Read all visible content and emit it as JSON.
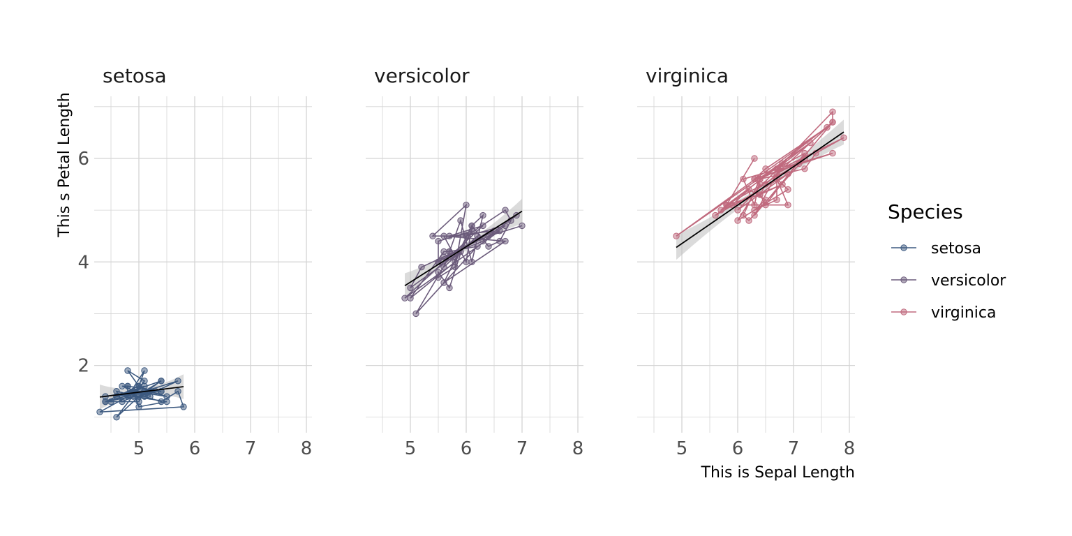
{
  "chart_data": {
    "type": "scatter",
    "facets": [
      "setosa",
      "versicolor",
      "virginica"
    ],
    "xlabel": "This is Sepal Length",
    "ylabel": "This s Petal Length",
    "xlim": [
      4.2,
      8.1
    ],
    "ylim": [
      0.7,
      7.2
    ],
    "x_ticks": [
      5,
      6,
      7,
      8
    ],
    "y_ticks": [
      2,
      4,
      6
    ],
    "grid": true,
    "legend": {
      "title": "Species",
      "position": "right"
    },
    "series": [
      {
        "name": "setosa",
        "color": "#3d5a80",
        "points": [
          [
            5.1,
            1.4
          ],
          [
            4.9,
            1.4
          ],
          [
            4.7,
            1.3
          ],
          [
            4.6,
            1.5
          ],
          [
            5.0,
            1.4
          ],
          [
            5.4,
            1.7
          ],
          [
            4.6,
            1.4
          ],
          [
            5.0,
            1.5
          ],
          [
            4.4,
            1.4
          ],
          [
            4.9,
            1.5
          ],
          [
            5.4,
            1.5
          ],
          [
            4.8,
            1.6
          ],
          [
            4.8,
            1.4
          ],
          [
            4.3,
            1.1
          ],
          [
            5.8,
            1.2
          ],
          [
            5.7,
            1.5
          ],
          [
            5.4,
            1.3
          ],
          [
            5.1,
            1.4
          ],
          [
            5.7,
            1.7
          ],
          [
            5.1,
            1.5
          ],
          [
            5.4,
            1.7
          ],
          [
            5.1,
            1.5
          ],
          [
            4.6,
            1.0
          ],
          [
            5.1,
            1.7
          ],
          [
            4.8,
            1.9
          ],
          [
            5.0,
            1.6
          ],
          [
            5.0,
            1.6
          ],
          [
            5.2,
            1.5
          ],
          [
            5.2,
            1.4
          ],
          [
            4.7,
            1.6
          ],
          [
            4.8,
            1.6
          ],
          [
            5.4,
            1.5
          ],
          [
            5.2,
            1.5
          ],
          [
            5.5,
            1.4
          ],
          [
            4.9,
            1.5
          ],
          [
            5.0,
            1.2
          ],
          [
            5.5,
            1.3
          ],
          [
            4.9,
            1.4
          ],
          [
            4.4,
            1.3
          ],
          [
            5.1,
            1.5
          ],
          [
            5.0,
            1.3
          ],
          [
            4.5,
            1.3
          ],
          [
            4.4,
            1.3
          ],
          [
            5.0,
            1.6
          ],
          [
            5.1,
            1.9
          ],
          [
            4.8,
            1.4
          ],
          [
            5.1,
            1.6
          ],
          [
            4.6,
            1.4
          ],
          [
            5.3,
            1.5
          ],
          [
            5.0,
            1.4
          ]
        ],
        "fit": {
          "x": [
            4.3,
            5.8
          ],
          "y": [
            1.39,
            1.59
          ]
        }
      },
      {
        "name": "versicolor",
        "color": "#6b5b7b",
        "points": [
          [
            7.0,
            4.7
          ],
          [
            6.4,
            4.5
          ],
          [
            6.9,
            4.9
          ],
          [
            5.5,
            4.0
          ],
          [
            6.5,
            4.6
          ],
          [
            5.7,
            4.5
          ],
          [
            6.3,
            4.7
          ],
          [
            4.9,
            3.3
          ],
          [
            6.6,
            4.6
          ],
          [
            5.2,
            3.9
          ],
          [
            5.0,
            3.5
          ],
          [
            5.9,
            4.2
          ],
          [
            6.0,
            4.0
          ],
          [
            6.1,
            4.7
          ],
          [
            5.6,
            3.6
          ],
          [
            6.7,
            4.4
          ],
          [
            5.6,
            4.5
          ],
          [
            5.8,
            4.1
          ],
          [
            6.2,
            4.5
          ],
          [
            5.6,
            3.9
          ],
          [
            5.9,
            4.8
          ],
          [
            6.1,
            4.0
          ],
          [
            6.3,
            4.9
          ],
          [
            6.1,
            4.7
          ],
          [
            6.4,
            4.3
          ],
          [
            6.6,
            4.4
          ],
          [
            6.8,
            4.8
          ],
          [
            6.7,
            5.0
          ],
          [
            6.0,
            4.5
          ],
          [
            5.7,
            3.5
          ],
          [
            5.5,
            3.8
          ],
          [
            5.5,
            3.7
          ],
          [
            5.8,
            3.9
          ],
          [
            6.0,
            5.1
          ],
          [
            5.4,
            4.5
          ],
          [
            6.0,
            4.5
          ],
          [
            6.7,
            4.7
          ],
          [
            6.3,
            4.4
          ],
          [
            5.6,
            4.1
          ],
          [
            5.5,
            4.0
          ],
          [
            5.5,
            4.4
          ],
          [
            6.1,
            4.6
          ],
          [
            5.8,
            4.0
          ],
          [
            5.0,
            3.3
          ],
          [
            5.6,
            4.2
          ],
          [
            5.7,
            4.2
          ],
          [
            5.7,
            4.2
          ],
          [
            6.2,
            4.3
          ],
          [
            5.1,
            3.0
          ],
          [
            5.7,
            4.1
          ]
        ],
        "fit": {
          "x": [
            4.9,
            7.0
          ],
          "y": [
            3.54,
            4.98
          ]
        }
      },
      {
        "name": "virginica",
        "color": "#c06a7e",
        "points": [
          [
            6.3,
            6.0
          ],
          [
            5.8,
            5.1
          ],
          [
            7.1,
            5.9
          ],
          [
            6.3,
            5.6
          ],
          [
            6.5,
            5.8
          ],
          [
            7.6,
            6.6
          ],
          [
            4.9,
            4.5
          ],
          [
            7.3,
            6.3
          ],
          [
            6.7,
            5.8
          ],
          [
            7.2,
            6.1
          ],
          [
            6.5,
            5.1
          ],
          [
            6.4,
            5.3
          ],
          [
            6.8,
            5.5
          ],
          [
            5.7,
            5.0
          ],
          [
            5.8,
            5.1
          ],
          [
            6.4,
            5.3
          ],
          [
            6.5,
            5.5
          ],
          [
            7.7,
            6.7
          ],
          [
            7.7,
            6.9
          ],
          [
            6.0,
            5.0
          ],
          [
            6.9,
            5.7
          ],
          [
            5.6,
            4.9
          ],
          [
            7.7,
            6.7
          ],
          [
            6.3,
            4.9
          ],
          [
            6.7,
            5.7
          ],
          [
            7.2,
            6.0
          ],
          [
            6.2,
            4.8
          ],
          [
            6.1,
            4.9
          ],
          [
            6.4,
            5.6
          ],
          [
            7.2,
            5.8
          ],
          [
            7.4,
            6.1
          ],
          [
            7.9,
            6.4
          ],
          [
            6.4,
            5.6
          ],
          [
            6.3,
            5.1
          ],
          [
            6.1,
            5.6
          ],
          [
            7.7,
            6.1
          ],
          [
            6.3,
            5.6
          ],
          [
            6.4,
            5.5
          ],
          [
            6.0,
            4.8
          ],
          [
            6.9,
            5.4
          ],
          [
            6.7,
            5.6
          ],
          [
            6.9,
            5.1
          ],
          [
            5.8,
            5.1
          ],
          [
            6.8,
            5.9
          ],
          [
            6.7,
            5.7
          ],
          [
            6.7,
            5.2
          ],
          [
            6.3,
            5.0
          ],
          [
            6.5,
            5.2
          ],
          [
            6.2,
            5.4
          ],
          [
            5.9,
            5.1
          ]
        ],
        "fit": {
          "x": [
            4.9,
            7.9
          ],
          "y": [
            4.28,
            6.51
          ]
        }
      }
    ]
  }
}
